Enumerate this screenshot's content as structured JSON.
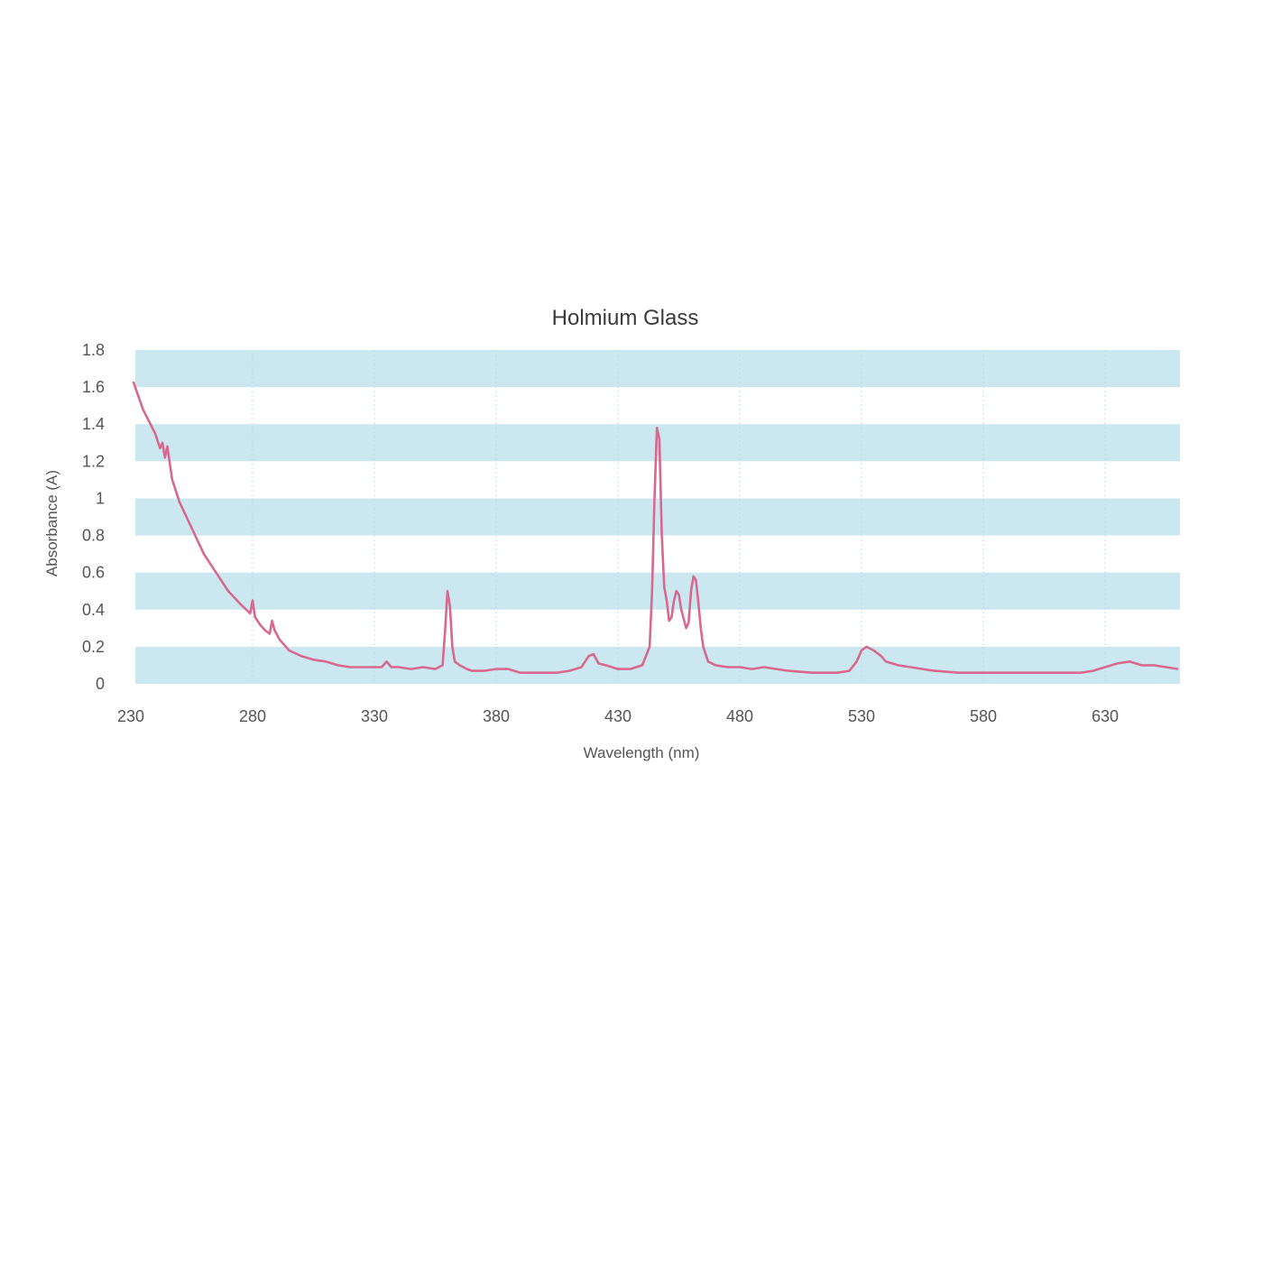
{
  "chart_data": {
    "type": "line",
    "title": "Holmium Glass",
    "xlabel": "Wavelength (nm)",
    "ylabel": "Absorbance (A)",
    "xlim": [
      230,
      660
    ],
    "ylim": [
      0,
      1.8
    ],
    "x_ticks": [
      230,
      280,
      330,
      380,
      430,
      480,
      530,
      580,
      630
    ],
    "y_ticks": [
      0,
      0.2,
      0.4,
      0.6,
      0.8,
      1,
      1.2,
      1.4,
      1.6,
      1.8
    ],
    "y_tick_labels": [
      "0",
      "0.2",
      "0.4",
      "0.6",
      "0.8",
      "1",
      "1.2",
      "1.4",
      "1.6",
      "1.8"
    ],
    "bands": [
      [
        0,
        0.2
      ],
      [
        0.4,
        0.6
      ],
      [
        0.8,
        1.0
      ],
      [
        1.2,
        1.4
      ],
      [
        1.6,
        1.8
      ]
    ],
    "colors": {
      "line": "#d9688e",
      "band": "#cbe8f1",
      "grid": "#bfdde8",
      "text": "#555555"
    },
    "series": [
      {
        "x": [
          231,
          235,
          240,
          242,
          243,
          244,
          245,
          247,
          250,
          255,
          260,
          265,
          270,
          275,
          279,
          280,
          281,
          283,
          285,
          287,
          288,
          289,
          291,
          295,
          300,
          305,
          310,
          315,
          320,
          325,
          330,
          333,
          335,
          337,
          340,
          345,
          350,
          355,
          358,
          359,
          360,
          361,
          362,
          363,
          365,
          368,
          370,
          375,
          380,
          385,
          390,
          395,
          400,
          405,
          410,
          415,
          418,
          420,
          422,
          425,
          430,
          435,
          440,
          443,
          444,
          445,
          446,
          447,
          448,
          449,
          450,
          451,
          452,
          453,
          454,
          455,
          456,
          457,
          458,
          459,
          460,
          461,
          462,
          463,
          464,
          465,
          467,
          470,
          475,
          480,
          485,
          490,
          495,
          500,
          510,
          520,
          525,
          528,
          530,
          532,
          535,
          538,
          540,
          545,
          550,
          555,
          560,
          570,
          580,
          590,
          600,
          610,
          620,
          625,
          630,
          635,
          640,
          645,
          650,
          655,
          660
        ],
        "values": [
          1.63,
          1.48,
          1.35,
          1.27,
          1.3,
          1.22,
          1.28,
          1.1,
          0.98,
          0.84,
          0.7,
          0.6,
          0.5,
          0.43,
          0.38,
          0.45,
          0.36,
          0.32,
          0.29,
          0.27,
          0.34,
          0.29,
          0.24,
          0.18,
          0.15,
          0.13,
          0.12,
          0.1,
          0.09,
          0.09,
          0.09,
          0.09,
          0.12,
          0.09,
          0.09,
          0.08,
          0.09,
          0.08,
          0.1,
          0.28,
          0.5,
          0.42,
          0.2,
          0.12,
          0.1,
          0.08,
          0.07,
          0.07,
          0.08,
          0.08,
          0.06,
          0.06,
          0.06,
          0.06,
          0.07,
          0.09,
          0.15,
          0.16,
          0.11,
          0.1,
          0.08,
          0.08,
          0.1,
          0.2,
          0.5,
          1.0,
          1.38,
          1.32,
          0.8,
          0.52,
          0.45,
          0.34,
          0.36,
          0.45,
          0.5,
          0.48,
          0.4,
          0.35,
          0.3,
          0.33,
          0.5,
          0.58,
          0.56,
          0.44,
          0.3,
          0.2,
          0.12,
          0.1,
          0.09,
          0.09,
          0.08,
          0.09,
          0.08,
          0.07,
          0.06,
          0.06,
          0.07,
          0.12,
          0.18,
          0.2,
          0.18,
          0.15,
          0.12,
          0.1,
          0.09,
          0.08,
          0.07,
          0.06,
          0.06,
          0.06,
          0.06,
          0.06,
          0.06,
          0.07,
          0.09,
          0.11,
          0.12,
          0.1,
          0.1,
          0.09,
          0.08
        ]
      }
    ]
  }
}
